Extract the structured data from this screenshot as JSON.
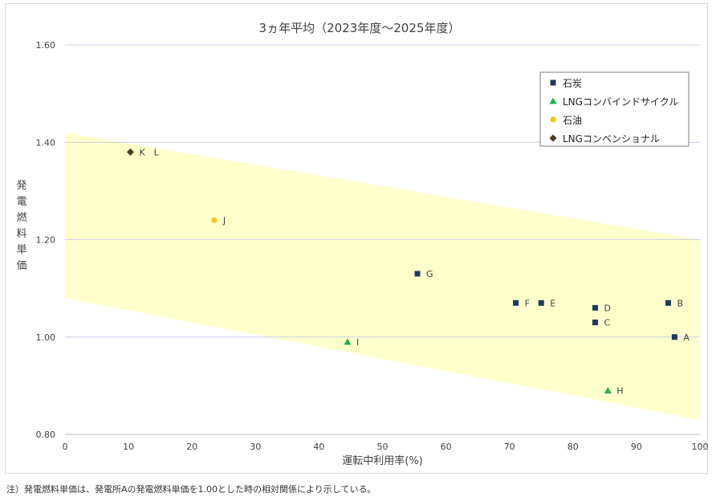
{
  "chart_data": {
    "type": "scatter",
    "title": "3ヵ年平均（2023年度～2025年度）",
    "xlabel": "運転中利用率(%)",
    "ylabel": "発電燃料単価",
    "xlim": [
      0,
      100
    ],
    "ylim": [
      0.8,
      1.6
    ],
    "x_ticks": [
      "0",
      "10",
      "20",
      "30",
      "40",
      "50",
      "60",
      "70",
      "80",
      "90",
      "100"
    ],
    "y_ticks": [
      "0.80",
      "1.00",
      "1.20",
      "1.40",
      "1.60"
    ],
    "grid": "horizontal",
    "legend_position": "top-right",
    "band": {
      "color": "#ffffcc",
      "upper": [
        [
          0,
          1.42
        ],
        [
          100,
          1.2
        ]
      ],
      "lower": [
        [
          0,
          1.08
        ],
        [
          100,
          0.83
        ]
      ]
    },
    "series": [
      {
        "name": "石炭",
        "marker": "square",
        "color": "#1f3864",
        "points": [
          {
            "label": "A",
            "x": 96,
            "y": 1.0
          },
          {
            "label": "B",
            "x": 95,
            "y": 1.07
          },
          {
            "label": "C",
            "x": 83.5,
            "y": 1.03
          },
          {
            "label": "D",
            "x": 83.5,
            "y": 1.06
          },
          {
            "label": "E",
            "x": 75,
            "y": 1.07
          },
          {
            "label": "F",
            "x": 71,
            "y": 1.07
          },
          {
            "label": "G",
            "x": 55.5,
            "y": 1.13
          }
        ]
      },
      {
        "name": "LNGコンバインドサイクル",
        "marker": "triangle",
        "color": "#22b14c",
        "points": [
          {
            "label": "H",
            "x": 85.5,
            "y": 0.89
          },
          {
            "label": "I",
            "x": 44.5,
            "y": 0.99
          }
        ]
      },
      {
        "name": "石油",
        "marker": "circle",
        "color": "#f5c518",
        "points": [
          {
            "label": "J",
            "x": 23.5,
            "y": 1.24
          }
        ]
      },
      {
        "name": "LNGコンベンショナル",
        "marker": "diamond",
        "color": "#4a3b1f",
        "points": [
          {
            "label": "K　L",
            "x": 10.3,
            "y": 1.38
          }
        ]
      }
    ]
  },
  "footnote": "注）発電燃料単価は、発電所Aの発電燃料単価を1.00とした時の相対関係により示している。"
}
